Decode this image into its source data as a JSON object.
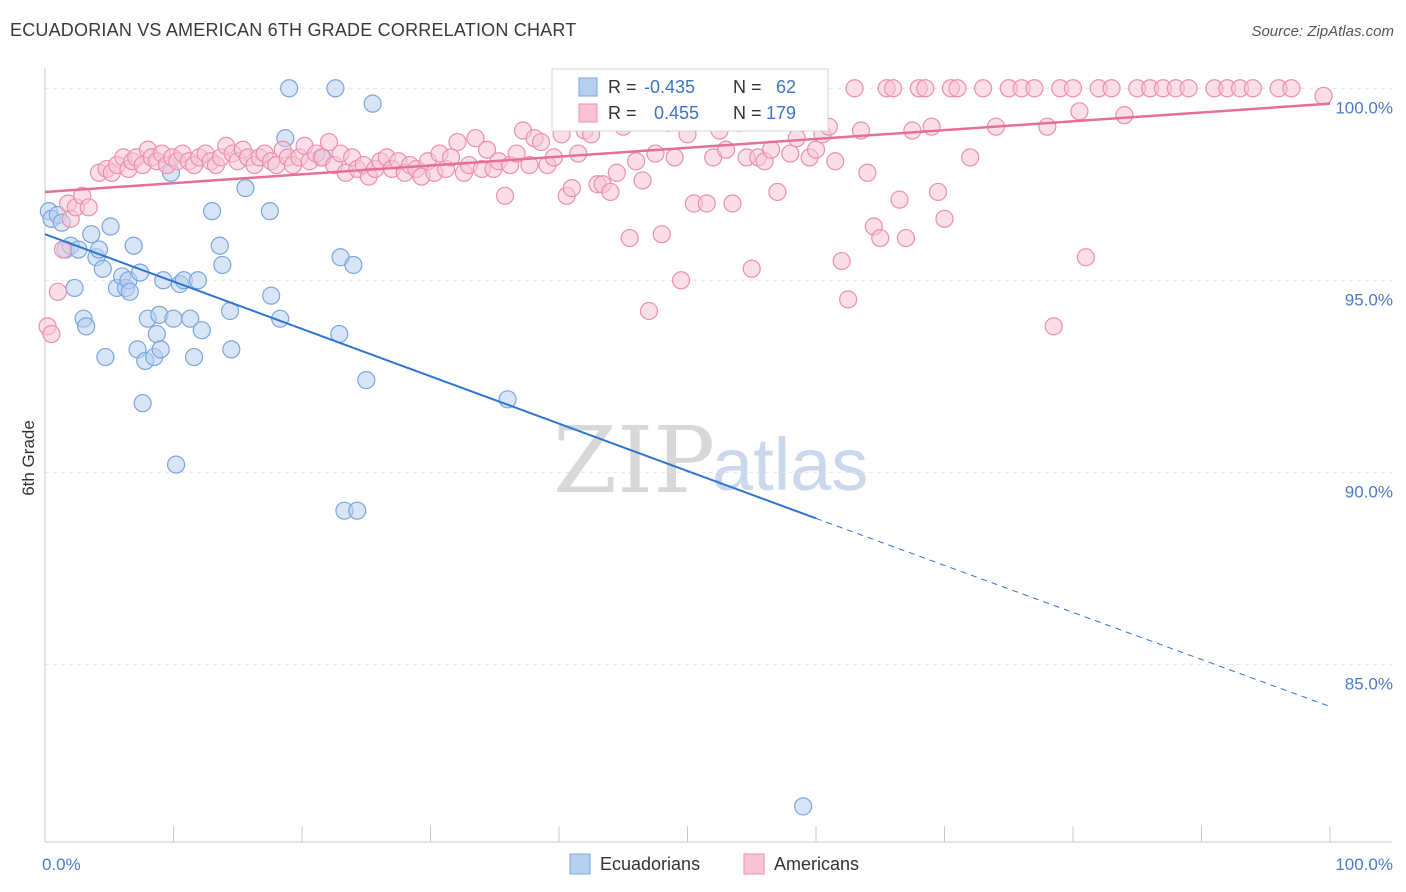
{
  "chart_data": {
    "type": "scatter",
    "title": "ECUADORIAN VS AMERICAN 6TH GRADE CORRELATION CHART",
    "source": "Source: ZipAtlas.com",
    "xlabel": "",
    "ylabel": "6th Grade",
    "xlim": [
      0,
      100
    ],
    "ylim": [
      80.2,
      100.8
    ],
    "x_tick_labels": [
      {
        "value": 0,
        "label": "0.0%"
      },
      {
        "value": 100,
        "label": "100.0%"
      }
    ],
    "y_ticks": [
      {
        "value": 100,
        "label": "100.0%"
      },
      {
        "value": 95,
        "label": "95.0%"
      },
      {
        "value": 90,
        "label": "90.0%"
      },
      {
        "value": 85,
        "label": "85.0%"
      }
    ],
    "grid": true,
    "legend_position": "bottom-center",
    "stats": [
      {
        "r_label": "R =",
        "r_value": "-0.435",
        "n_label": "N =",
        "n_value": "62"
      },
      {
        "r_label": "R =",
        "r_value": "0.455",
        "n_label": "N =",
        "n_value": "179"
      }
    ],
    "watermark": {
      "zip": "ZIP",
      "atlas": "atlas"
    },
    "series": [
      {
        "name": "Ecuadorians",
        "color": "#7aa6de",
        "fill": "#b8d0ef",
        "trend": {
          "x0": 0,
          "y0": 96.2,
          "x1": 60,
          "y1": 88.8,
          "dash_to_x": 100,
          "dash_to_y": 83.9,
          "color": "#2f74d0"
        },
        "points": [
          [
            0.3,
            96.8
          ],
          [
            0.5,
            96.6
          ],
          [
            1.0,
            96.7
          ],
          [
            1.3,
            96.5
          ],
          [
            1.6,
            95.8
          ],
          [
            2.0,
            95.9
          ],
          [
            2.3,
            94.8
          ],
          [
            2.6,
            95.8
          ],
          [
            3.0,
            94.0
          ],
          [
            3.2,
            93.8
          ],
          [
            3.6,
            96.2
          ],
          [
            4.0,
            95.6
          ],
          [
            4.2,
            95.8
          ],
          [
            4.5,
            95.3
          ],
          [
            4.7,
            93.0
          ],
          [
            5.1,
            96.4
          ],
          [
            5.6,
            94.8
          ],
          [
            6.0,
            95.1
          ],
          [
            6.3,
            94.8
          ],
          [
            6.5,
            95.0
          ],
          [
            6.6,
            94.7
          ],
          [
            6.9,
            95.9
          ],
          [
            7.2,
            93.2
          ],
          [
            7.4,
            95.2
          ],
          [
            7.6,
            91.8
          ],
          [
            7.8,
            92.9
          ],
          [
            8.0,
            94.0
          ],
          [
            8.5,
            93.0
          ],
          [
            8.7,
            93.6
          ],
          [
            8.9,
            94.1
          ],
          [
            9.0,
            93.2
          ],
          [
            9.2,
            95.0
          ],
          [
            9.8,
            97.8
          ],
          [
            10.0,
            94.0
          ],
          [
            10.2,
            90.2
          ],
          [
            10.5,
            94.9
          ],
          [
            10.8,
            95.0
          ],
          [
            11.3,
            94.0
          ],
          [
            11.6,
            93.0
          ],
          [
            11.9,
            95.0
          ],
          [
            12.2,
            93.7
          ],
          [
            13.0,
            96.8
          ],
          [
            13.6,
            95.9
          ],
          [
            13.8,
            95.4
          ],
          [
            14.4,
            94.2
          ],
          [
            14.5,
            93.2
          ],
          [
            15.6,
            97.4
          ],
          [
            17.5,
            96.8
          ],
          [
            17.6,
            94.6
          ],
          [
            18.3,
            94.0
          ],
          [
            18.7,
            98.7
          ],
          [
            19.0,
            100.0
          ],
          [
            21.5,
            98.2
          ],
          [
            22.6,
            100.0
          ],
          [
            22.9,
            93.6
          ],
          [
            23.0,
            95.6
          ],
          [
            23.3,
            89.0
          ],
          [
            24.0,
            95.4
          ],
          [
            24.3,
            89.0
          ],
          [
            25.0,
            92.4
          ],
          [
            25.5,
            99.6
          ],
          [
            36.0,
            91.9
          ],
          [
            59.0,
            81.3
          ]
        ]
      },
      {
        "name": "Americans",
        "color": "#ec8fb0",
        "fill": "#f6c4d5",
        "trend": {
          "x0": 0,
          "y0": 97.3,
          "x1": 100,
          "y1": 99.6,
          "color": "#e4709a"
        },
        "points": [
          [
            0.2,
            93.8
          ],
          [
            0.5,
            93.6
          ],
          [
            1.0,
            94.7
          ],
          [
            1.4,
            95.8
          ],
          [
            1.8,
            97.0
          ],
          [
            2.0,
            96.6
          ],
          [
            2.4,
            96.9
          ],
          [
            2.9,
            97.2
          ],
          [
            3.4,
            96.9
          ],
          [
            4.2,
            97.8
          ],
          [
            4.8,
            97.9
          ],
          [
            5.2,
            97.8
          ],
          [
            5.6,
            98.0
          ],
          [
            6.1,
            98.2
          ],
          [
            6.5,
            97.9
          ],
          [
            6.8,
            98.1
          ],
          [
            7.1,
            98.2
          ],
          [
            7.6,
            98.0
          ],
          [
            8.0,
            98.4
          ],
          [
            8.3,
            98.2
          ],
          [
            8.7,
            98.1
          ],
          [
            9.1,
            98.3
          ],
          [
            9.5,
            98.0
          ],
          [
            9.9,
            98.2
          ],
          [
            10.3,
            98.1
          ],
          [
            10.7,
            98.3
          ],
          [
            11.2,
            98.1
          ],
          [
            11.6,
            98.0
          ],
          [
            12.0,
            98.2
          ],
          [
            12.5,
            98.3
          ],
          [
            12.9,
            98.1
          ],
          [
            13.3,
            98.0
          ],
          [
            13.7,
            98.2
          ],
          [
            14.1,
            98.5
          ],
          [
            14.6,
            98.3
          ],
          [
            15.0,
            98.1
          ],
          [
            15.4,
            98.4
          ],
          [
            15.8,
            98.2
          ],
          [
            16.3,
            98.0
          ],
          [
            16.7,
            98.2
          ],
          [
            17.1,
            98.3
          ],
          [
            17.6,
            98.1
          ],
          [
            18.0,
            98.0
          ],
          [
            18.5,
            98.4
          ],
          [
            18.9,
            98.2
          ],
          [
            19.3,
            98.0
          ],
          [
            19.8,
            98.2
          ],
          [
            20.2,
            98.5
          ],
          [
            20.6,
            98.1
          ],
          [
            21.1,
            98.3
          ],
          [
            21.6,
            98.2
          ],
          [
            22.1,
            98.6
          ],
          [
            22.5,
            98.0
          ],
          [
            23.0,
            98.3
          ],
          [
            23.4,
            97.8
          ],
          [
            23.9,
            98.2
          ],
          [
            24.3,
            97.9
          ],
          [
            24.8,
            98.0
          ],
          [
            25.2,
            97.7
          ],
          [
            25.7,
            97.9
          ],
          [
            26.1,
            98.1
          ],
          [
            26.6,
            98.2
          ],
          [
            27.0,
            97.9
          ],
          [
            27.5,
            98.1
          ],
          [
            28.0,
            97.8
          ],
          [
            28.4,
            98.0
          ],
          [
            28.9,
            97.9
          ],
          [
            29.3,
            97.7
          ],
          [
            29.8,
            98.1
          ],
          [
            30.3,
            97.8
          ],
          [
            30.7,
            98.3
          ],
          [
            31.2,
            97.9
          ],
          [
            31.6,
            98.2
          ],
          [
            32.1,
            98.6
          ],
          [
            32.6,
            97.8
          ],
          [
            33.0,
            98.0
          ],
          [
            33.5,
            98.7
          ],
          [
            34.0,
            97.9
          ],
          [
            34.4,
            98.4
          ],
          [
            34.9,
            97.9
          ],
          [
            35.3,
            98.1
          ],
          [
            35.8,
            97.2
          ],
          [
            36.2,
            98.0
          ],
          [
            36.7,
            98.3
          ],
          [
            37.2,
            98.9
          ],
          [
            37.7,
            98.0
          ],
          [
            38.1,
            98.7
          ],
          [
            38.6,
            98.6
          ],
          [
            39.1,
            98.0
          ],
          [
            39.6,
            98.2
          ],
          [
            40.2,
            98.8
          ],
          [
            40.6,
            97.2
          ],
          [
            41.0,
            97.4
          ],
          [
            41.5,
            98.3
          ],
          [
            42.0,
            98.9
          ],
          [
            42.5,
            98.8
          ],
          [
            43.0,
            97.5
          ],
          [
            43.4,
            97.5
          ],
          [
            44.0,
            97.3
          ],
          [
            44.5,
            97.8
          ],
          [
            45.0,
            99.0
          ],
          [
            45.5,
            96.1
          ],
          [
            46.0,
            98.1
          ],
          [
            46.5,
            97.6
          ],
          [
            47.0,
            94.2
          ],
          [
            47.5,
            98.3
          ],
          [
            48.0,
            96.2
          ],
          [
            48.5,
            99.1
          ],
          [
            49.0,
            98.2
          ],
          [
            49.5,
            95.0
          ],
          [
            50.0,
            98.8
          ],
          [
            50.5,
            97.0
          ],
          [
            51.0,
            100.0
          ],
          [
            51.5,
            97.0
          ],
          [
            52.0,
            98.2
          ],
          [
            52.5,
            98.9
          ],
          [
            53.0,
            98.4
          ],
          [
            53.5,
            97.0
          ],
          [
            54.0,
            99.1
          ],
          [
            54.6,
            98.2
          ],
          [
            55.0,
            95.3
          ],
          [
            55.5,
            98.2
          ],
          [
            56.0,
            98.1
          ],
          [
            56.5,
            98.4
          ],
          [
            57.0,
            97.3
          ],
          [
            57.5,
            100.0
          ],
          [
            58.0,
            98.3
          ],
          [
            58.5,
            98.7
          ],
          [
            59.0,
            99.1
          ],
          [
            59.5,
            98.2
          ],
          [
            60.0,
            98.4
          ],
          [
            60.5,
            98.8
          ],
          [
            61.0,
            99.0
          ],
          [
            61.5,
            98.1
          ],
          [
            62.0,
            95.5
          ],
          [
            62.5,
            94.5
          ],
          [
            63.0,
            100.0
          ],
          [
            63.5,
            98.9
          ],
          [
            64.0,
            97.8
          ],
          [
            64.5,
            96.4
          ],
          [
            65.0,
            96.1
          ],
          [
            65.5,
            100.0
          ],
          [
            66.0,
            100.0
          ],
          [
            66.5,
            97.1
          ],
          [
            67.0,
            96.1
          ],
          [
            67.5,
            98.9
          ],
          [
            68.0,
            100.0
          ],
          [
            68.5,
            100.0
          ],
          [
            69.0,
            99.0
          ],
          [
            69.5,
            97.3
          ],
          [
            70.0,
            96.6
          ],
          [
            70.5,
            100.0
          ],
          [
            71.0,
            100.0
          ],
          [
            72.0,
            98.2
          ],
          [
            73.0,
            100.0
          ],
          [
            74.0,
            99.0
          ],
          [
            75.0,
            100.0
          ],
          [
            76.0,
            100.0
          ],
          [
            77.0,
            100.0
          ],
          [
            78.0,
            99.0
          ],
          [
            78.5,
            93.8
          ],
          [
            79.0,
            100.0
          ],
          [
            80.0,
            100.0
          ],
          [
            80.5,
            99.4
          ],
          [
            81.0,
            95.6
          ],
          [
            82.0,
            100.0
          ],
          [
            83.0,
            100.0
          ],
          [
            84.0,
            99.3
          ],
          [
            85.0,
            100.0
          ],
          [
            86.0,
            100.0
          ],
          [
            87.0,
            100.0
          ],
          [
            88.0,
            100.0
          ],
          [
            89.0,
            100.0
          ],
          [
            91.0,
            100.0
          ],
          [
            92.0,
            100.0
          ],
          [
            93.0,
            100.0
          ],
          [
            94.0,
            100.0
          ],
          [
            96.0,
            100.0
          ],
          [
            97.0,
            100.0
          ],
          [
            99.5,
            99.8
          ]
        ]
      }
    ]
  }
}
